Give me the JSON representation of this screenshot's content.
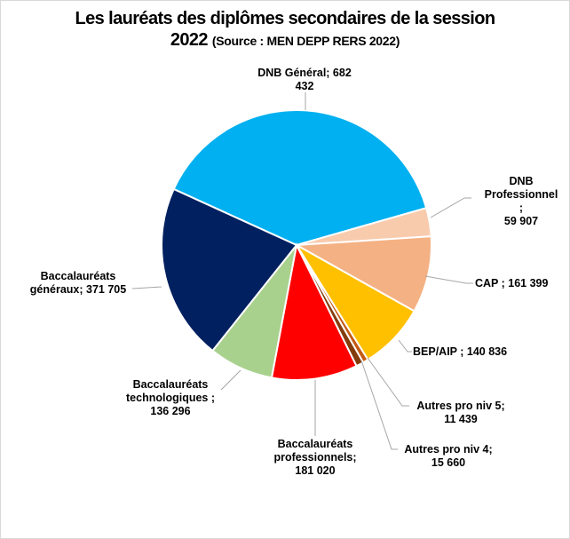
{
  "chart_data": {
    "type": "pie",
    "title": "Les lauréats des diplômes secondaires de la session 2022",
    "title_line1": "Les lauréats des diplômes secondaires de la session",
    "title_line2": "2022",
    "subtitle": "(Source : MEN DEPP RERS 2022)",
    "slices": [
      {
        "name": "DNB Général",
        "value": 682432,
        "color": "#00B0F0",
        "label": "DNB  Général;  682\n432"
      },
      {
        "name": "DNB Professionnel",
        "value": 59907,
        "color": "#F8CBAD",
        "label": "DNB\nProfessionnel\n;\n59 907"
      },
      {
        "name": "CAP",
        "value": 161399,
        "color": "#F4B183",
        "label": "CAP ; 161 399"
      },
      {
        "name": "BEP/AIP",
        "value": 140836,
        "color": "#FFC000",
        "label": "BEP/AIP ; 140 836"
      },
      {
        "name": "Autres pro niv 5",
        "value": 11439,
        "color": "#C55A11",
        "label": "Autres  pro niv 5;\n11 439"
      },
      {
        "name": "Autres pro niv 4",
        "value": 15660,
        "color": "#843C0C",
        "label": "Autres  pro niv 4;\n15 660"
      },
      {
        "name": "Baccalauréats professionnels",
        "value": 181020,
        "color": "#FF0000",
        "label": "Baccalauréats\nprofessionnels;\n181 020"
      },
      {
        "name": "Baccalauréats technologiques",
        "value": 136296,
        "color": "#A9D18E",
        "label": "Baccalauréats\ntechnologiques ;\n136 296"
      },
      {
        "name": "Baccalauréats généraux",
        "value": 371705,
        "color": "#002060",
        "label": "Baccalauréats\ngénéraux; 371 705"
      }
    ],
    "legend": "none"
  }
}
